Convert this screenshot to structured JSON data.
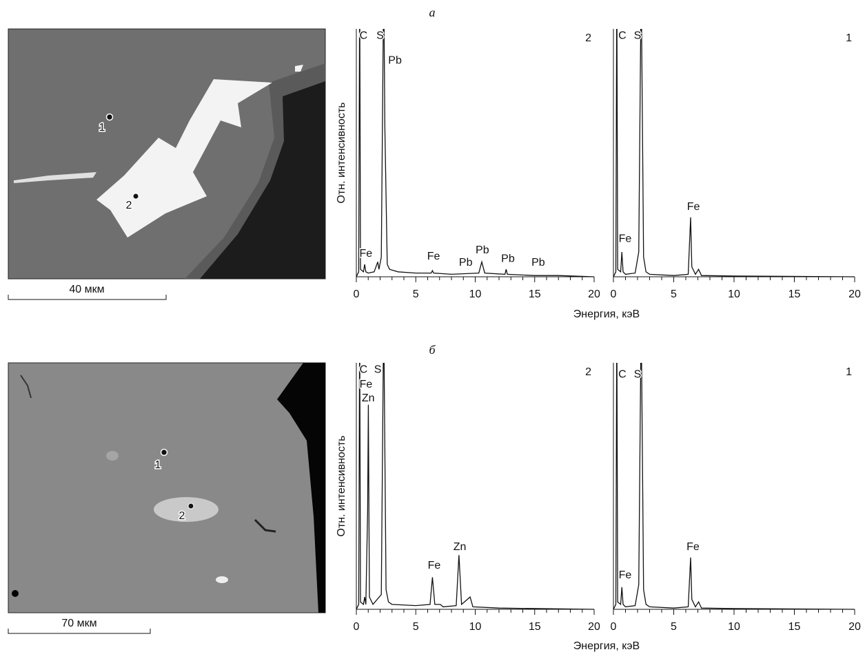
{
  "figure": {
    "panels": [
      {
        "label": "а",
        "scale_bar": "40 мкм",
        "point_labels": [
          "1",
          "2"
        ],
        "x_label": "Энергия, кэВ",
        "y_label": "Отн. интенсивность"
      },
      {
        "label": "б",
        "scale_bar": "70 мкм",
        "point_labels": [
          "1",
          "2"
        ],
        "x_label": "Энергия, кэВ",
        "y_label": "Отн. интенсивность"
      }
    ]
  },
  "chart_data": [
    {
      "type": "line",
      "corner_label": "2",
      "xlim": [
        0,
        20
      ],
      "ylim": [
        0,
        100
      ],
      "xticks": [
        0,
        5,
        10,
        15,
        20
      ],
      "minor_xticks": [
        1,
        2,
        3,
        4,
        6,
        7,
        8,
        9,
        11,
        12,
        13,
        14,
        16,
        17,
        18,
        19
      ],
      "color": "#111111",
      "x": [
        0,
        0.2,
        0.28,
        0.35,
        0.6,
        0.7,
        0.8,
        1.0,
        1.5,
        1.8,
        1.9,
        2.1,
        2.3,
        2.4,
        2.6,
        2.8,
        3.5,
        5,
        6.3,
        6.4,
        6.5,
        8,
        10.3,
        10.55,
        10.8,
        12.5,
        12.6,
        12.7,
        15,
        17,
        20
      ],
      "values": [
        0,
        2,
        120,
        3,
        2,
        5,
        2,
        1.5,
        2,
        6,
        3,
        8,
        120,
        60,
        5,
        3,
        2,
        1.5,
        1.5,
        2.5,
        1.5,
        1,
        1.5,
        6,
        1.5,
        1,
        3,
        1,
        0.5,
        0.5,
        0
      ],
      "annotations": [
        {
          "label": "C",
          "x": 0.6,
          "y": 96
        },
        {
          "label": "S",
          "x": 2.0,
          "y": 96
        },
        {
          "label": "Pb",
          "x": 3.25,
          "y": 86
        },
        {
          "label": "Fe",
          "x": 0.8,
          "y": 8
        },
        {
          "label": "Fe",
          "x": 6.5,
          "y": 7
        },
        {
          "label": "Pb",
          "x": 9.2,
          "y": 4.5
        },
        {
          "label": "Pb",
          "x": 10.6,
          "y": 9.4
        },
        {
          "label": "Pb",
          "x": 12.75,
          "y": 6
        },
        {
          "label": "Pb",
          "x": 15.3,
          "y": 4.5
        }
      ]
    },
    {
      "type": "line",
      "corner_label": "1",
      "xlim": [
        0,
        20
      ],
      "ylim": [
        0,
        100
      ],
      "xticks": [
        0,
        5,
        10,
        15,
        20
      ],
      "minor_xticks": [
        1,
        2,
        3,
        4,
        6,
        7,
        8,
        9,
        11,
        12,
        13,
        14,
        16,
        17,
        18,
        19
      ],
      "color": "#111111",
      "x": [
        0,
        0.2,
        0.28,
        0.35,
        0.6,
        0.7,
        0.8,
        1.0,
        1.8,
        2.1,
        2.3,
        2.5,
        2.7,
        3,
        5,
        6.2,
        6.4,
        6.5,
        6.8,
        7.06,
        7.3,
        10,
        20
      ],
      "values": [
        0,
        2,
        120,
        3,
        2,
        10,
        2,
        1,
        1.5,
        10,
        120,
        8,
        2,
        1,
        0.5,
        1,
        24,
        4,
        1,
        3,
        0.5,
        0.3,
        0
      ],
      "annotations": [
        {
          "label": "C",
          "x": 0.74,
          "y": 96
        },
        {
          "label": "S",
          "x": 2.0,
          "y": 96
        },
        {
          "label": "Fe",
          "x": 0.97,
          "y": 14
        },
        {
          "label": "Fe",
          "x": 6.63,
          "y": 27
        }
      ]
    },
    {
      "type": "line",
      "corner_label": "2",
      "xlim": [
        0,
        20
      ],
      "ylim": [
        0,
        100
      ],
      "xticks": [
        0,
        5,
        10,
        15,
        20
      ],
      "minor_xticks": [
        1,
        2,
        3,
        4,
        6,
        7,
        8,
        9,
        11,
        12,
        13,
        14,
        16,
        17,
        18,
        19
      ],
      "color": "#111111",
      "x": [
        0,
        0.2,
        0.28,
        0.35,
        0.6,
        0.7,
        0.8,
        0.95,
        1.01,
        1.1,
        1.4,
        2.1,
        2.3,
        2.5,
        2.7,
        3,
        5,
        6.2,
        6.4,
        6.6,
        7.06,
        7.3,
        8.4,
        8.63,
        8.85,
        9.57,
        9.8,
        12,
        20
      ],
      "values": [
        0,
        2,
        120,
        3,
        2,
        5,
        2,
        40,
        83,
        5,
        2,
        6,
        120,
        8,
        3,
        2,
        1.5,
        2,
        13,
        2,
        2,
        1,
        1.5,
        22,
        2,
        5,
        1,
        0.5,
        0
      ],
      "annotations": [
        {
          "label": "C",
          "x": 0.6,
          "y": 96
        },
        {
          "label": "S",
          "x": 1.8,
          "y": 96
        },
        {
          "label": "Fe",
          "x": 0.81,
          "y": 90
        },
        {
          "label": "Zn",
          "x": 1.0,
          "y": 84.4
        },
        {
          "label": "Fe",
          "x": 6.55,
          "y": 16.5
        },
        {
          "label": "Zn",
          "x": 8.7,
          "y": 24
        }
      ]
    },
    {
      "type": "line",
      "corner_label": "1",
      "xlim": [
        0,
        20
      ],
      "ylim": [
        0,
        100
      ],
      "xticks": [
        0,
        5,
        10,
        15,
        20
      ],
      "minor_xticks": [
        1,
        2,
        3,
        4,
        6,
        7,
        8,
        9,
        11,
        12,
        13,
        14,
        16,
        17,
        18,
        19
      ],
      "color": "#111111",
      "x": [
        0,
        0.2,
        0.28,
        0.35,
        0.6,
        0.7,
        0.8,
        1.0,
        1.8,
        2.1,
        2.3,
        2.5,
        2.7,
        3,
        5,
        6.2,
        6.4,
        6.5,
        6.8,
        7.06,
        7.3,
        10,
        20
      ],
      "values": [
        0,
        2,
        120,
        3,
        2,
        9,
        2,
        1,
        1.5,
        10,
        120,
        8,
        2,
        1,
        0.5,
        1,
        21,
        4,
        1,
        3,
        0.5,
        0.3,
        0
      ],
      "annotations": [
        {
          "label": "C",
          "x": 0.74,
          "y": 94
        },
        {
          "label": "S",
          "x": 2.0,
          "y": 94
        },
        {
          "label": "Fe",
          "x": 0.97,
          "y": 12.6
        },
        {
          "label": "Fe",
          "x": 6.6,
          "y": 24
        }
      ]
    }
  ]
}
